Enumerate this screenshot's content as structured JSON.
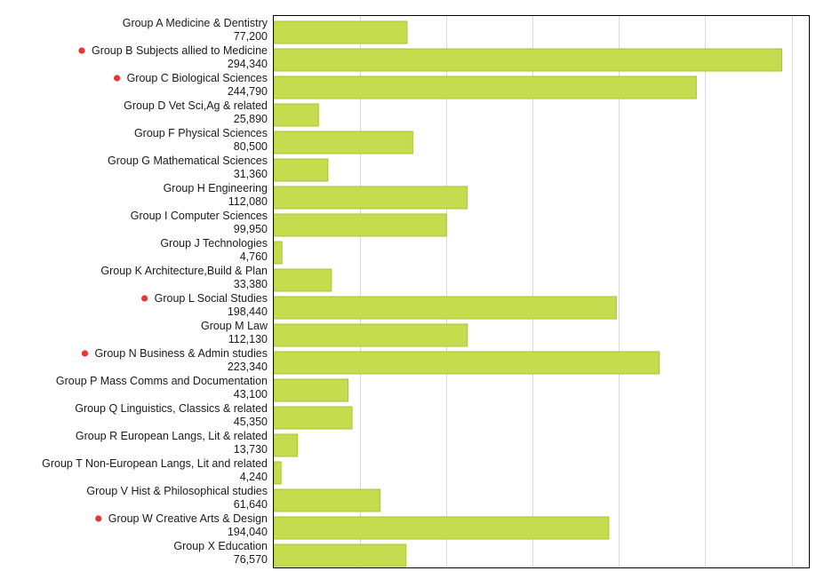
{
  "chart_data": {
    "type": "bar",
    "orientation": "horizontal",
    "categories": [
      "Group A Medicine & Dentistry",
      "Group B Subjects allied to Medicine",
      "Group C Biological Sciences",
      "Group D Vet Sci,Ag & related",
      "Group F Physical Sciences",
      "Group G Mathematical Sciences",
      "Group H Engineering",
      "Group I Computer Sciences",
      "Group J Technologies",
      "Group K Architecture,Build & Plan",
      "Group L Social Studies",
      "Group M Law",
      "Group N Business & Admin studies",
      "Group P Mass Comms and Documentation",
      "Group Q Linguistics, Classics & related",
      "Group R European Langs, Lit & related",
      "Group T Non-European Langs, Lit and related",
      "Group V Hist & Philosophical studies",
      "Group W Creative Arts & Design",
      "Group X Education"
    ],
    "value_labels": [
      "77,200",
      "294,340",
      "244,790",
      "25,890",
      "80,500",
      "31,360",
      "112,080",
      "99,950",
      "4,760",
      "33,380",
      "198,440",
      "112,130",
      "223,340",
      "43,100",
      "45,350",
      "13,730",
      "4,240",
      "61,640",
      "194,040",
      "76,570"
    ],
    "values": [
      77200,
      294340,
      244790,
      25890,
      80500,
      31360,
      112080,
      99950,
      4760,
      33380,
      198440,
      112130,
      223340,
      43100,
      45350,
      13730,
      4240,
      61640,
      194040,
      76570
    ],
    "highlighted": [
      false,
      true,
      true,
      false,
      false,
      false,
      false,
      false,
      false,
      false,
      true,
      false,
      true,
      false,
      false,
      false,
      false,
      false,
      true,
      false
    ],
    "xlim": [
      0,
      310000
    ],
    "grid_step": 50000,
    "grid": true,
    "legend": "none",
    "title": "",
    "xlabel": "",
    "ylabel": "",
    "colors": {
      "bar_fill": "#c5dc4f",
      "bar_stroke": "#a9c433",
      "marker": "#ee3333",
      "grid": "#d9d9d9",
      "frame": "#000000"
    }
  }
}
